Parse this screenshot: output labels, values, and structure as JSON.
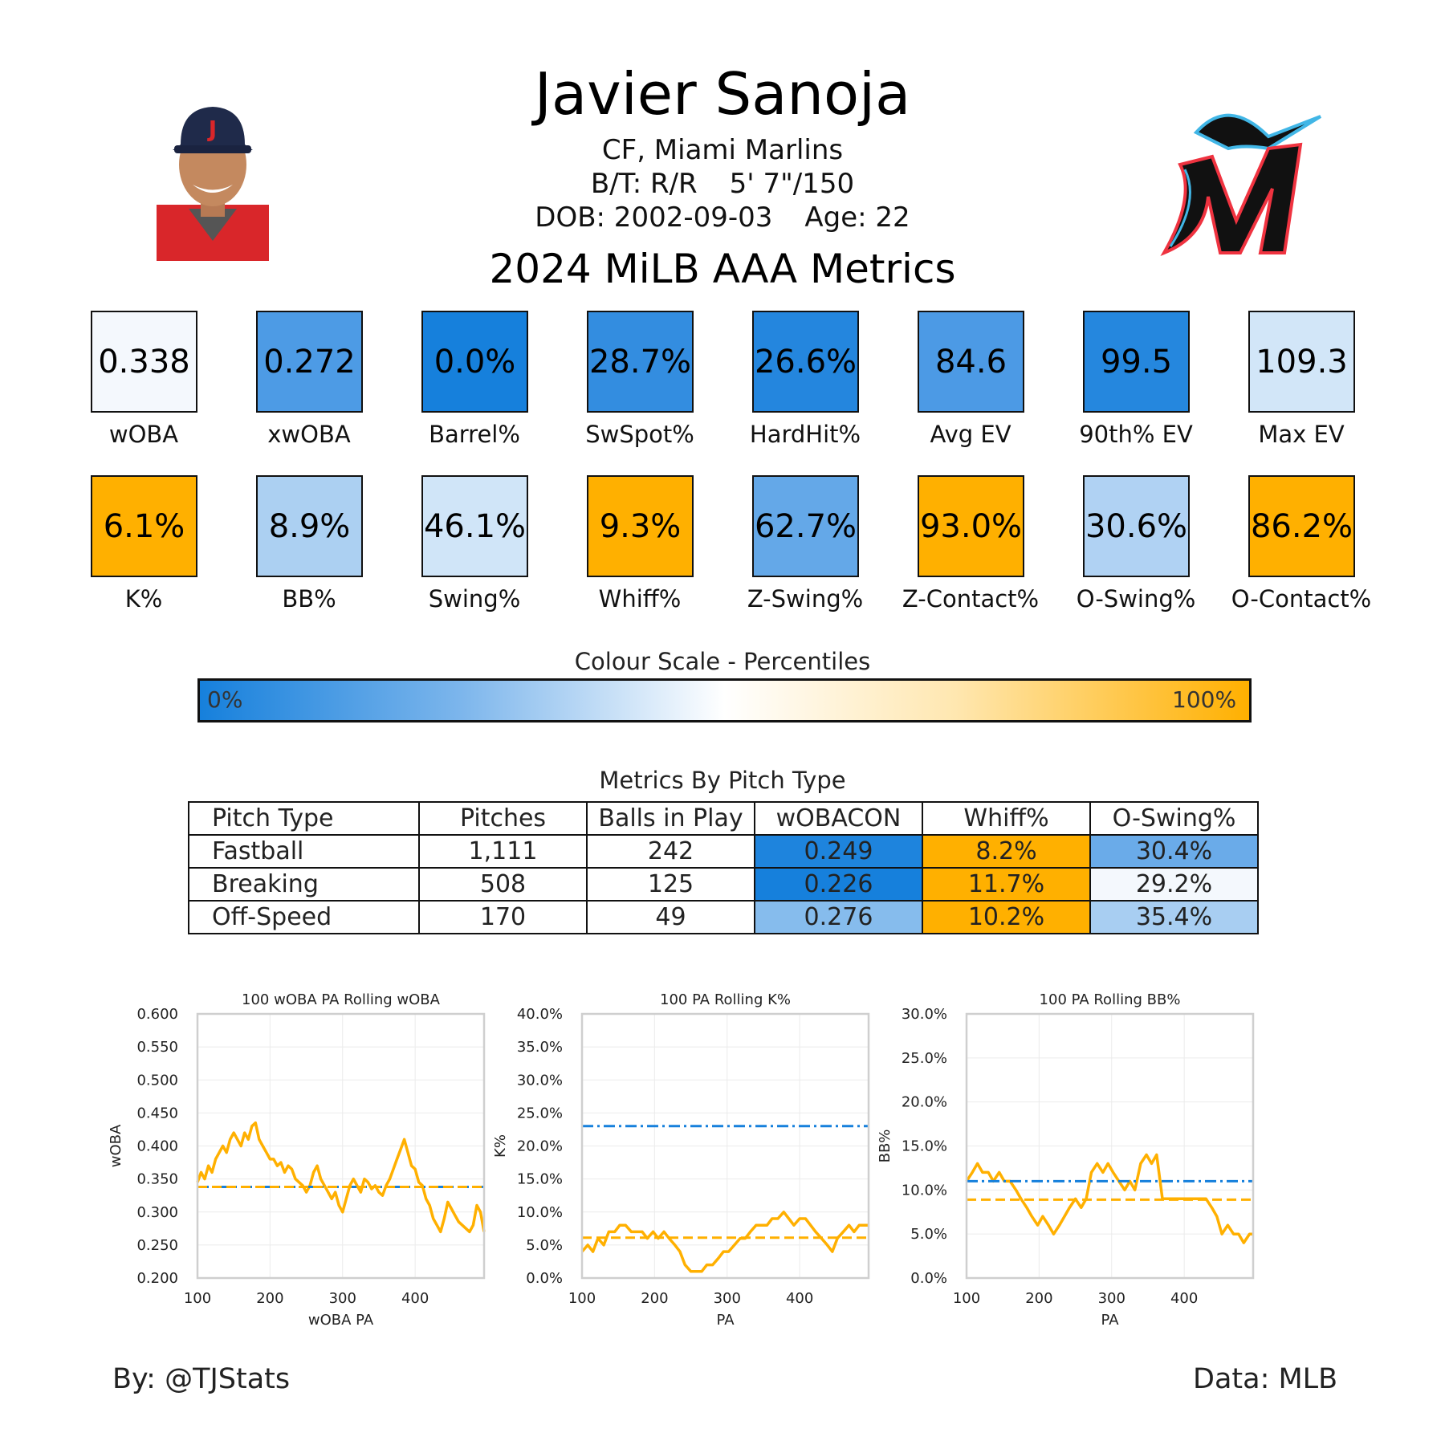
{
  "header": {
    "player_name": "Javier Sanoja",
    "position_team": "CF, Miami Marlins",
    "bats_throws": "B/T: R/R",
    "height_weight": "5' 7\"/150",
    "dob": "DOB: 2002-09-03",
    "age": "Age: 22",
    "season_title": "2024 MiLB AAA Metrics"
  },
  "metrics_row1": [
    {
      "value": "0.338",
      "label": "wOBA",
      "color": "#f4f8fd"
    },
    {
      "value": "0.272",
      "label": "xwOBA",
      "color": "#4d9be5"
    },
    {
      "value": "0.0%",
      "label": "Barrel%",
      "color": "#1680dc"
    },
    {
      "value": "28.7%",
      "label": "SwSpot%",
      "color": "#338de0"
    },
    {
      "value": "26.6%",
      "label": "HardHit%",
      "color": "#2486de"
    },
    {
      "value": "84.6",
      "label": "Avg EV",
      "color": "#4c9ae5"
    },
    {
      "value": "99.5",
      "label": "90th% EV",
      "color": "#2587de"
    },
    {
      "value": "109.3",
      "label": "Max EV",
      "color": "#d2e6f8"
    }
  ],
  "metrics_row2": [
    {
      "value": "6.1%",
      "label": "K%",
      "color": "#ffb000"
    },
    {
      "value": "8.9%",
      "label": "BB%",
      "color": "#acd0f2"
    },
    {
      "value": "46.1%",
      "label": "Swing%",
      "color": "#d0e5f8"
    },
    {
      "value": "9.3%",
      "label": "Whiff%",
      "color": "#ffb000"
    },
    {
      "value": "62.7%",
      "label": "Z-Swing%",
      "color": "#64a8e8"
    },
    {
      "value": "93.0%",
      "label": "Z-Contact%",
      "color": "#ffb000"
    },
    {
      "value": "30.6%",
      "label": "O-Swing%",
      "color": "#b0d2f3"
    },
    {
      "value": "86.2%",
      "label": "O-Contact%",
      "color": "#ffb000"
    }
  ],
  "color_scale": {
    "title": "Colour Scale - Percentiles",
    "min_label": "0%",
    "max_label": "100%",
    "low_color": "#1680dc",
    "mid_color": "#ffffff",
    "high_color": "#ffb000"
  },
  "pitch_table": {
    "title": "Metrics By Pitch Type",
    "headers": [
      "Pitch Type",
      "Pitches",
      "Balls in Play",
      "wOBACON",
      "Whiff%",
      "O-Swing%"
    ],
    "rows": [
      {
        "cells": [
          "Fastball",
          "1,111",
          "242",
          "0.249",
          "8.2%",
          "30.4%"
        ],
        "colors": [
          "#1e84dd",
          "#ffb000",
          "#6aabe9"
        ]
      },
      {
        "cells": [
          "Breaking",
          "508",
          "125",
          "0.226",
          "11.7%",
          "29.2%"
        ],
        "colors": [
          "#1680dc",
          "#ffb000",
          "#f4f8fd"
        ]
      },
      {
        "cells": [
          "Off-Speed",
          "170",
          "49",
          "0.276",
          "10.2%",
          "35.4%"
        ],
        "colors": [
          "#86bced",
          "#ffb000",
          "#a8cef2"
        ]
      }
    ]
  },
  "chart_data": [
    {
      "type": "line",
      "title": "100 wOBA PA Rolling wOBA",
      "xlabel": "wOBA PA",
      "ylabel": "wOBA",
      "xlim": [
        100,
        495
      ],
      "ylim": [
        0.2,
        0.6
      ],
      "x_ticks": [
        100,
        200,
        300,
        400
      ],
      "y_ticks": [
        0.2,
        0.25,
        0.3,
        0.35,
        0.4,
        0.45,
        0.5,
        0.55,
        0.6
      ],
      "y_tick_labels": [
        "0.200",
        "0.250",
        "0.300",
        "0.350",
        "0.400",
        "0.450",
        "0.500",
        "0.550",
        "0.600"
      ],
      "grid": true,
      "series": [
        {
          "style": "solid",
          "color": "#ffb000",
          "x": [
            100,
            105,
            110,
            115,
            120,
            125,
            130,
            135,
            140,
            145,
            150,
            155,
            160,
            165,
            170,
            175,
            180,
            185,
            190,
            195,
            200,
            205,
            210,
            215,
            220,
            225,
            230,
            235,
            240,
            245,
            250,
            255,
            260,
            265,
            270,
            275,
            280,
            285,
            290,
            295,
            300,
            305,
            310,
            315,
            320,
            325,
            330,
            335,
            340,
            345,
            350,
            355,
            360,
            365,
            370,
            375,
            380,
            385,
            390,
            395,
            400,
            405,
            410,
            415,
            420,
            425,
            430,
            435,
            440,
            445,
            450,
            455,
            460,
            465,
            470,
            475,
            480,
            485,
            490,
            495
          ],
          "y": [
            0.345,
            0.36,
            0.35,
            0.37,
            0.36,
            0.38,
            0.39,
            0.4,
            0.39,
            0.41,
            0.42,
            0.41,
            0.4,
            0.42,
            0.41,
            0.43,
            0.435,
            0.41,
            0.4,
            0.39,
            0.38,
            0.38,
            0.37,
            0.375,
            0.36,
            0.37,
            0.365,
            0.35,
            0.345,
            0.34,
            0.33,
            0.34,
            0.36,
            0.37,
            0.35,
            0.34,
            0.33,
            0.32,
            0.33,
            0.31,
            0.3,
            0.32,
            0.34,
            0.35,
            0.34,
            0.33,
            0.35,
            0.345,
            0.335,
            0.34,
            0.33,
            0.325,
            0.34,
            0.35,
            0.365,
            0.38,
            0.395,
            0.41,
            0.39,
            0.37,
            0.365,
            0.345,
            0.34,
            0.32,
            0.31,
            0.29,
            0.28,
            0.27,
            0.29,
            0.315,
            0.305,
            0.295,
            0.285,
            0.28,
            0.275,
            0.27,
            0.28,
            0.31,
            0.3,
            0.27
          ]
        },
        {
          "style": "dashdot",
          "color": "#1680dc",
          "x": [
            100,
            495
          ],
          "y": [
            0.338,
            0.338
          ]
        },
        {
          "style": "dashed",
          "color": "#ffb000",
          "x": [
            100,
            495
          ],
          "y": [
            0.338,
            0.338
          ]
        }
      ]
    },
    {
      "type": "line",
      "title": "100 PA Rolling K%",
      "xlabel": "PA",
      "ylabel": "K%",
      "xlim": [
        100,
        495
      ],
      "ylim": [
        0,
        40
      ],
      "x_ticks": [
        100,
        200,
        300,
        400
      ],
      "y_ticks": [
        0,
        5,
        10,
        15,
        20,
        25,
        30,
        35,
        40
      ],
      "y_tick_labels": [
        "0.0%",
        "5.0%",
        "10.0%",
        "15.0%",
        "20.0%",
        "25.0%",
        "30.0%",
        "35.0%",
        "40.0%"
      ],
      "grid": true,
      "series": [
        {
          "style": "solid",
          "color": "#ffb000",
          "x": [
            100,
            108,
            115,
            122,
            130,
            137,
            145,
            152,
            160,
            168,
            175,
            183,
            190,
            198,
            205,
            213,
            220,
            228,
            235,
            242,
            250,
            258,
            265,
            272,
            280,
            288,
            295,
            302,
            310,
            318,
            325,
            332,
            340,
            348,
            355,
            362,
            370,
            378,
            385,
            392,
            400,
            408,
            415,
            422,
            430,
            438,
            445,
            452,
            460,
            468,
            475,
            482,
            490,
            495
          ],
          "y": [
            4,
            5,
            4,
            6,
            5,
            7,
            7,
            8,
            8,
            7,
            7,
            7,
            6,
            7,
            6,
            7,
            6,
            5,
            4,
            2,
            1,
            1,
            1,
            2,
            2,
            3,
            4,
            4,
            5,
            6,
            6,
            7,
            8,
            8,
            8,
            9,
            9,
            10,
            9,
            8,
            9,
            9,
            8,
            7,
            6,
            5,
            4,
            6,
            7,
            8,
            7,
            8,
            8,
            8
          ]
        },
        {
          "style": "dashdot",
          "color": "#1680dc",
          "x": [
            100,
            495
          ],
          "y": [
            23,
            23
          ]
        },
        {
          "style": "dashed",
          "color": "#ffb000",
          "x": [
            100,
            495
          ],
          "y": [
            6.1,
            6.1
          ]
        }
      ]
    },
    {
      "type": "line",
      "title": "100 PA Rolling BB%",
      "xlabel": "PA",
      "ylabel": "BB%",
      "xlim": [
        100,
        495
      ],
      "ylim": [
        0,
        30
      ],
      "x_ticks": [
        100,
        200,
        300,
        400
      ],
      "y_ticks": [
        0,
        5,
        10,
        15,
        20,
        25,
        30
      ],
      "y_tick_labels": [
        "0.0%",
        "5.0%",
        "10.0%",
        "15.0%",
        "20.0%",
        "25.0%",
        "30.0%"
      ],
      "grid": true,
      "series": [
        {
          "style": "solid",
          "color": "#ffb000",
          "x": [
            100,
            108,
            115,
            122,
            130,
            137,
            145,
            152,
            160,
            168,
            175,
            183,
            190,
            198,
            205,
            213,
            220,
            228,
            235,
            242,
            250,
            258,
            265,
            272,
            280,
            288,
            295,
            302,
            310,
            318,
            325,
            332,
            340,
            348,
            355,
            362,
            370,
            378,
            385,
            392,
            400,
            408,
            415,
            422,
            430,
            438,
            445,
            452,
            460,
            468,
            475,
            482,
            490,
            495
          ],
          "y": [
            11,
            12,
            13,
            12,
            12,
            11,
            12,
            11,
            11,
            10,
            9,
            8,
            7,
            6,
            7,
            6,
            5,
            6,
            7,
            8,
            9,
            8,
            9,
            12,
            13,
            12,
            13,
            12,
            11,
            10,
            11,
            10,
            13,
            14,
            13,
            14,
            9,
            9,
            9,
            9,
            9,
            9,
            9,
            9,
            9,
            8,
            7,
            5,
            6,
            5,
            5,
            4,
            5,
            5
          ]
        },
        {
          "style": "dashdot",
          "color": "#1680dc",
          "x": [
            100,
            495
          ],
          "y": [
            11,
            11
          ]
        },
        {
          "style": "dashed",
          "color": "#ffb000",
          "x": [
            100,
            495
          ],
          "y": [
            8.9,
            8.9
          ]
        }
      ]
    }
  ],
  "footer": {
    "credit": "By: @TJStats",
    "source": "Data: MLB"
  }
}
